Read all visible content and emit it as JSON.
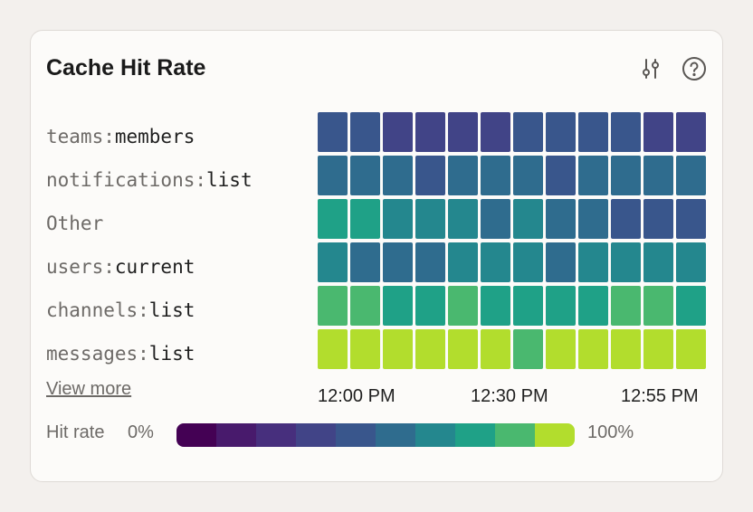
{
  "card": {
    "title": "Cache Hit Rate",
    "filter_icon": "sliders-icon",
    "help_icon": "help-circle-icon"
  },
  "rows": [
    {
      "namespace": "teams:",
      "name": "members"
    },
    {
      "namespace": "notifications:",
      "name": "list"
    },
    {
      "namespace": "Other",
      "name": ""
    },
    {
      "namespace": "users:",
      "name": "current"
    },
    {
      "namespace": "channels:",
      "name": "list"
    },
    {
      "namespace": "messages:",
      "name": "list"
    }
  ],
  "view_more": "View more",
  "x_ticks": [
    "12:00 PM",
    "12:30 PM",
    "12:55 PM"
  ],
  "legend": {
    "title": "Hit rate",
    "min": "0%",
    "max": "100%",
    "colors": [
      "#440154",
      "#481a6c",
      "#472f7d",
      "#414487",
      "#39568c",
      "#2f6c8e",
      "#24878e",
      "#1fa187",
      "#4ab86f",
      "#b2dd2d"
    ]
  },
  "chart_data": {
    "type": "heatmap",
    "y_categories": [
      "teams:members",
      "notifications:list",
      "Other",
      "users:current",
      "channels:list",
      "messages:list"
    ],
    "x_ticks": [
      "12:00 PM",
      "12:30 PM",
      "12:55 PM"
    ],
    "columns": 12,
    "color_scale": {
      "min": 0,
      "max": 100,
      "unit": "%"
    },
    "values": [
      [
        40,
        40,
        30,
        30,
        30,
        30,
        40,
        40,
        40,
        40,
        30,
        30
      ],
      [
        50,
        50,
        50,
        40,
        50,
        50,
        50,
        40,
        50,
        50,
        50,
        50
      ],
      [
        70,
        70,
        60,
        60,
        60,
        50,
        60,
        50,
        50,
        40,
        40,
        40
      ],
      [
        60,
        50,
        50,
        50,
        60,
        60,
        60,
        50,
        60,
        60,
        60,
        60
      ],
      [
        80,
        80,
        70,
        70,
        80,
        70,
        70,
        70,
        70,
        80,
        80,
        70
      ],
      [
        90,
        90,
        90,
        90,
        90,
        90,
        80,
        90,
        90,
        90,
        90,
        90
      ]
    ]
  }
}
